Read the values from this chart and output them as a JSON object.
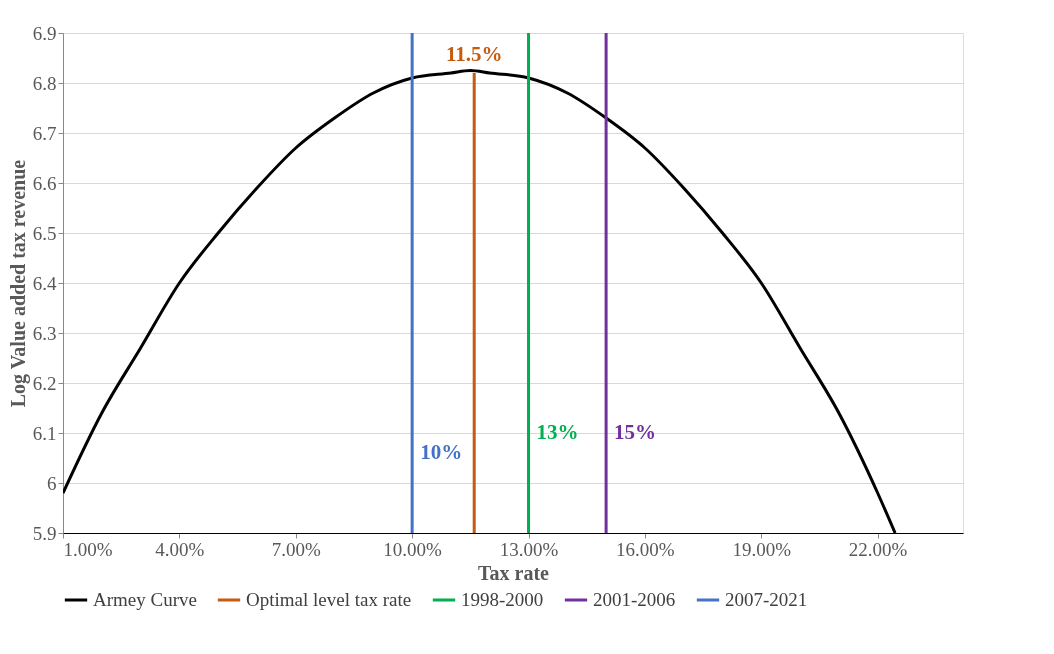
{
  "chart_data": {
    "type": "line",
    "xlabel": "Tax rate",
    "ylabel": "Log Value added tax revenue",
    "xlim": [
      1,
      24.2
    ],
    "ylim": [
      5.9,
      6.9
    ],
    "xticks": [
      {
        "value": 1,
        "label": "1.00%"
      },
      {
        "value": 4,
        "label": "4.00%"
      },
      {
        "value": 7,
        "label": "7.00%"
      },
      {
        "value": 10,
        "label": "10.00%"
      },
      {
        "value": 13,
        "label": "13.00%"
      },
      {
        "value": 16,
        "label": "16.00%"
      },
      {
        "value": 19,
        "label": "19.00%"
      },
      {
        "value": 22,
        "label": "22.00%"
      }
    ],
    "yticks": [
      5.9,
      6,
      6.1,
      6.2,
      6.3,
      6.4,
      6.5,
      6.6,
      6.7,
      6.8,
      6.9
    ],
    "grid": "y",
    "legend": "bottom",
    "line_style": "solid",
    "marker": "none",
    "series": [
      {
        "name": "Armey Curve",
        "color": "#000000",
        "x": [
          1,
          2,
          3,
          4,
          5,
          6,
          7,
          8,
          9,
          10,
          11,
          11.5,
          12,
          13,
          14,
          15,
          16,
          17,
          18,
          19,
          20,
          21,
          22,
          22.45
        ],
        "values": [
          5.98,
          6.14,
          6.27,
          6.4,
          6.5,
          6.59,
          6.67,
          6.73,
          6.78,
          6.81,
          6.82,
          6.825,
          6.82,
          6.81,
          6.78,
          6.73,
          6.67,
          6.59,
          6.5,
          6.4,
          6.27,
          6.14,
          5.98,
          5.9
        ]
      },
      {
        "name": "Optimal level tax rate",
        "color": "#c55a11",
        "x": [
          11.6,
          11.6
        ],
        "values": [
          5.9,
          6.82
        ]
      },
      {
        "name": "1998-2000",
        "color": "#00b050",
        "x": [
          13,
          13,
          13
        ],
        "values": [
          5.9,
          6.1,
          6.9
        ]
      },
      {
        "name": "2001-2006",
        "color": "#7030a0",
        "x": [
          15,
          15,
          15
        ],
        "values": [
          5.9,
          6.1,
          6.9
        ]
      },
      {
        "name": "2007-2021",
        "color": "#4472c4",
        "x": [
          10,
          10,
          10
        ],
        "values": [
          5.9,
          6.06,
          6.9
        ]
      }
    ],
    "annotations": [
      {
        "text": "10%",
        "x": 10,
        "y": 6.06
      },
      {
        "text": "11.5%",
        "x": 11.6,
        "y": 6.82
      },
      {
        "text": "13%",
        "x": 13,
        "y": 6.1
      },
      {
        "text": "15%",
        "x": 15,
        "y": 6.1
      }
    ]
  }
}
